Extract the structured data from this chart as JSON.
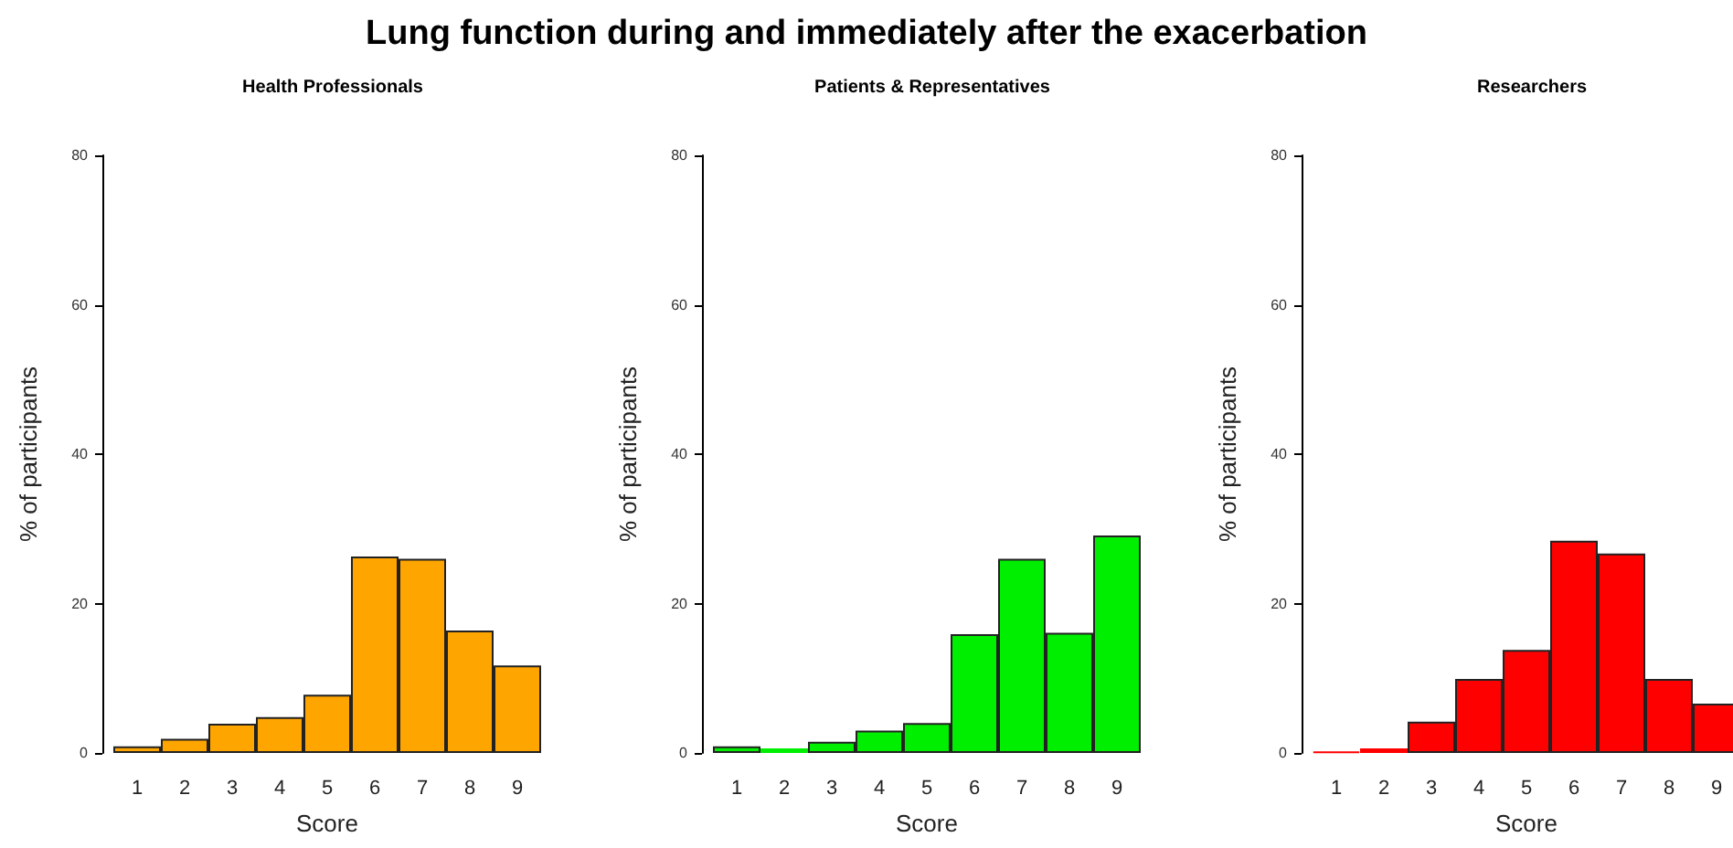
{
  "chart_data": [
    {
      "type": "bar",
      "annotations": [
        "Lung function during and immediately after the exacerbation"
      ],
      "title": "Health Professionals",
      "xlabel": "Score",
      "ylabel": "% of participants",
      "categories": [
        "1",
        "2",
        "3",
        "4",
        "5",
        "6",
        "7",
        "8",
        "9"
      ],
      "values": [
        0.9,
        1.9,
        3.9,
        4.8,
        7.8,
        26.3,
        26.0,
        16.4,
        11.7
      ],
      "color": "#ffa500",
      "ylim": [
        0,
        80
      ],
      "yticks": [
        0,
        20,
        40,
        60,
        80
      ]
    },
    {
      "type": "bar",
      "title": "Patients & Representatives",
      "xlabel": "Score",
      "ylabel": "% of participants",
      "categories": [
        "1",
        "2",
        "3",
        "4",
        "5",
        "6",
        "7",
        "8",
        "9"
      ],
      "values": [
        0.9,
        0.6,
        1.5,
        3.0,
        4.0,
        15.9,
        26.0,
        16.1,
        29.1
      ],
      "color": "#00ee00",
      "ylim": [
        0,
        80
      ],
      "yticks": [
        0,
        20,
        40,
        60,
        80
      ]
    },
    {
      "type": "bar",
      "title": "Researchers",
      "xlabel": "Score",
      "ylabel": "% of participants",
      "categories": [
        "1",
        "2",
        "3",
        "4",
        "5",
        "6",
        "7",
        "8",
        "9"
      ],
      "values": [
        0.2,
        0.6,
        4.2,
        9.9,
        13.8,
        28.4,
        26.7,
        9.9,
        6.6
      ],
      "color": "#ff0000",
      "ylim": [
        0,
        80
      ],
      "yticks": [
        0,
        20,
        40,
        60,
        80
      ]
    }
  ]
}
